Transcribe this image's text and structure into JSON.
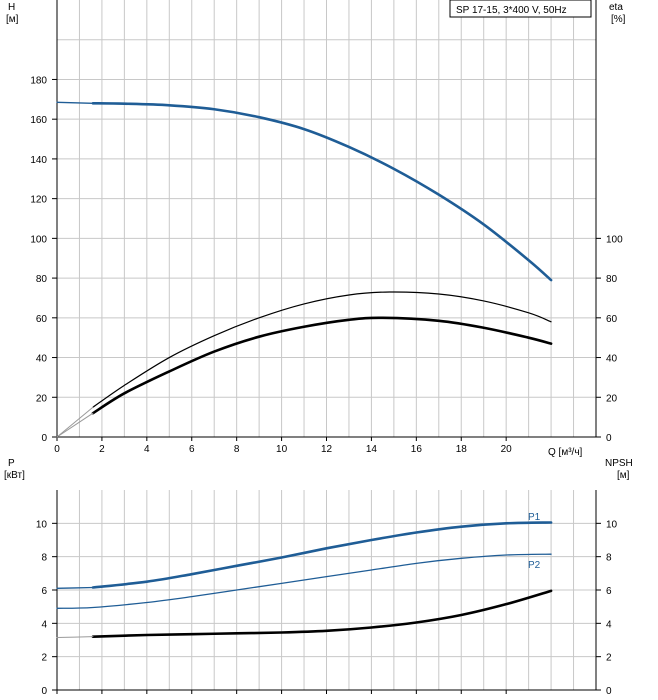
{
  "colors": {
    "grid": "#c8c8c8",
    "frame": "#000000",
    "head_curve": "#1f5d96",
    "power_curve": "#1f5d96",
    "efficiency_curve": "#000000"
  },
  "chart_data": [
    {
      "type": "line",
      "name": "pump-curve",
      "legend_text": "SP 17-15, 3*400 V, 50Hz",
      "legend_position": "top-right",
      "grid": true,
      "xlim": [
        0,
        24
      ],
      "xticks": [
        0,
        2,
        4,
        6,
        8,
        10,
        12,
        14,
        16,
        18,
        20
      ],
      "xlabel": "Q [м³/ч]",
      "left_axis": {
        "label_top": "H",
        "label_unit": "[м]",
        "ylim": [
          0,
          220
        ],
        "ticks": [
          0,
          20,
          40,
          60,
          80,
          100,
          120,
          140,
          160,
          180
        ]
      },
      "right_axis": {
        "label_top": "eta",
        "label_unit": "[%]",
        "ylim": [
          0,
          220
        ],
        "ticks": [
          0,
          20,
          40,
          60,
          80,
          100
        ]
      },
      "series": [
        {
          "role": "head",
          "axis": "left",
          "style": "heavy-blue",
          "x": [
            1.6,
            3,
            5,
            7,
            9,
            11,
            13,
            15,
            17,
            19,
            21,
            22
          ],
          "y": [
            168,
            167.8,
            167,
            165,
            161,
            155,
            146,
            135,
            122,
            107,
            89,
            79
          ]
        },
        {
          "role": "head-extension",
          "axis": "left",
          "style": "thin-blue",
          "x": [
            0,
            1.6
          ],
          "y": [
            168.5,
            168
          ]
        },
        {
          "role": "eta-upper",
          "axis": "right",
          "style": "thin-black",
          "x": [
            1.6,
            3,
            5,
            7,
            9,
            11,
            13,
            14.8,
            17,
            19,
            21,
            22
          ],
          "y": [
            15,
            26,
            40,
            51,
            60,
            67,
            71.5,
            73,
            72,
            68.5,
            62.5,
            58
          ]
        },
        {
          "role": "eta-lower",
          "axis": "right",
          "style": "heavy-black",
          "x": [
            1.6,
            3,
            5,
            7,
            9,
            11,
            13,
            14.5,
            17,
            19,
            21,
            22
          ],
          "y": [
            12,
            22,
            33,
            43,
            50.5,
            55.5,
            59,
            60,
            58.5,
            55,
            50,
            47
          ]
        },
        {
          "role": "eta-upper-extension",
          "axis": "right",
          "style": "thin-grey",
          "x": [
            0,
            1.6
          ],
          "y": [
            0,
            15
          ]
        },
        {
          "role": "eta-lower-extension",
          "axis": "right",
          "style": "thin-grey",
          "x": [
            0,
            1.6
          ],
          "y": [
            0,
            12
          ]
        }
      ]
    },
    {
      "type": "line",
      "name": "power-npsh-curve",
      "grid": true,
      "xlim": [
        0,
        24
      ],
      "xticks": [
        0,
        2,
        4,
        6,
        8,
        10,
        12,
        14,
        16,
        18,
        20
      ],
      "left_axis": {
        "label_top": "P",
        "label_unit": "[кВт]",
        "ylim": [
          0,
          12
        ],
        "ticks": [
          0,
          2,
          4,
          6,
          8,
          10
        ]
      },
      "right_axis": {
        "label_top": "NPSH",
        "label_unit": "[м]",
        "ylim": [
          0,
          12
        ],
        "ticks": [
          0,
          2,
          4,
          6,
          8,
          10
        ]
      },
      "series": [
        {
          "name": "P1",
          "axis": "left",
          "style": "heavy-blue",
          "x": [
            1.6,
            4,
            6,
            8,
            10,
            12,
            14,
            16,
            18,
            20,
            22
          ],
          "y": [
            6.15,
            6.5,
            6.95,
            7.45,
            7.95,
            8.5,
            9.0,
            9.45,
            9.8,
            10.0,
            10.05
          ]
        },
        {
          "role": "p1-extension",
          "axis": "left",
          "style": "thin-blue",
          "x": [
            0,
            1.6
          ],
          "y": [
            6.1,
            6.15
          ]
        },
        {
          "name": "P2",
          "axis": "left",
          "style": "thin-blue",
          "x": [
            0,
            1.6,
            4,
            6,
            8,
            10,
            12,
            14,
            16,
            18,
            20,
            22
          ],
          "y": [
            4.9,
            4.95,
            5.25,
            5.6,
            6.0,
            6.4,
            6.8,
            7.2,
            7.6,
            7.9,
            8.1,
            8.15
          ]
        },
        {
          "role": "npsh",
          "axis": "right",
          "style": "heavy-black",
          "x": [
            1.6,
            4,
            6,
            8,
            10,
            12,
            14,
            16,
            18,
            20,
            22
          ],
          "y": [
            3.2,
            3.3,
            3.35,
            3.4,
            3.45,
            3.55,
            3.75,
            4.05,
            4.5,
            5.15,
            5.95
          ]
        },
        {
          "role": "npsh-extension",
          "axis": "right",
          "style": "thin-grey",
          "x": [
            0,
            1.6
          ],
          "y": [
            3.15,
            3.2
          ]
        }
      ]
    }
  ]
}
